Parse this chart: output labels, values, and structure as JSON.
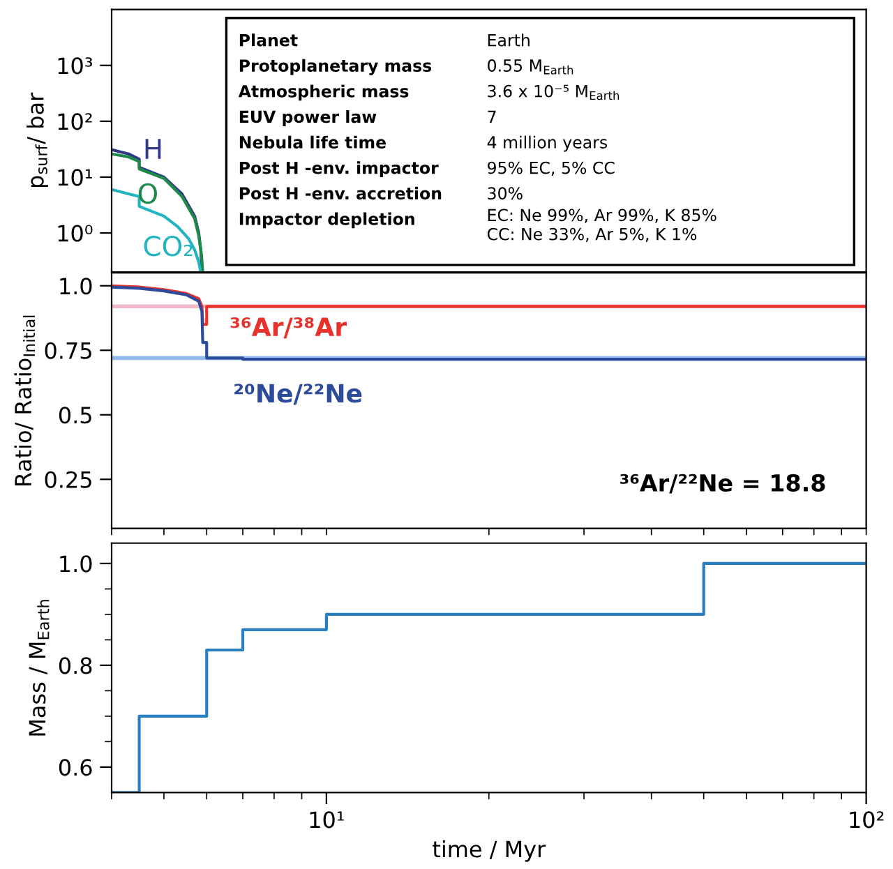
{
  "chart_data": [
    {
      "type": "line",
      "ylabel": "p$_{surf}$/ bar",
      "log": "xy",
      "xlim": [
        4,
        100
      ],
      "ylim": [
        0.2,
        10000
      ],
      "xticks": [
        {
          "value": 4,
          "label": null
        },
        {
          "value": 5,
          "label": null
        },
        {
          "value": 6,
          "label": null
        },
        {
          "value": 7,
          "label": null
        },
        {
          "value": 8,
          "label": null
        },
        {
          "value": 9,
          "label": null
        },
        {
          "value": 10,
          "label": null
        },
        {
          "value": 20,
          "label": null
        },
        {
          "value": 30,
          "label": null
        },
        {
          "value": 40,
          "label": null
        },
        {
          "value": 50,
          "label": null
        },
        {
          "value": 60,
          "label": null
        },
        {
          "value": 70,
          "label": null
        },
        {
          "value": 80,
          "label": null
        },
        {
          "value": 90,
          "label": null
        },
        {
          "value": 100,
          "label": null
        }
      ],
      "yticks": [
        {
          "value": 1,
          "label": "10⁰"
        },
        {
          "value": 10,
          "label": "10¹"
        },
        {
          "value": 100,
          "label": "10²"
        },
        {
          "value": 1000,
          "label": "10³"
        }
      ],
      "tick_labels": "y",
      "grid": false,
      "legend": false,
      "series": [
        {
          "name": "H",
          "color": "#2e3a87",
          "x": [
            4,
            4.3,
            4.5,
            4.5,
            5,
            5.4,
            5.7,
            5.8,
            5.85,
            5.88
          ],
          "values": [
            31,
            26,
            21,
            15,
            10,
            5,
            2,
            1,
            0.5,
            0.2
          ]
        },
        {
          "name": "O",
          "color": "#1e8a4a",
          "x": [
            4,
            4.3,
            4.5,
            4.5,
            5,
            5.4,
            5.7,
            5.8,
            5.87,
            5.9
          ],
          "values": [
            26,
            23,
            19,
            14,
            9.5,
            4.5,
            1.8,
            0.9,
            0.4,
            0.2
          ]
        },
        {
          "name": "CO₂",
          "color": "#22b5c0",
          "x": [
            4,
            4.3,
            4.5,
            4.5,
            5,
            5.3,
            5.55,
            5.7,
            5.8,
            5.85
          ],
          "values": [
            6,
            5,
            4.5,
            3,
            2,
            1.3,
            0.8,
            0.5,
            0.3,
            0.2
          ]
        }
      ],
      "annotations": [
        "Planet",
        "Earth",
        "Protoplanetary mass",
        "0.55 M$_{Earth}$",
        "Atmospheric mass",
        "3.6 x 10⁻⁵ M$_{Earth}$",
        "EUV power law",
        "7",
        "Nebula life time",
        "4 million years",
        "Post H -env. impactor",
        "95% EC, 5% CC",
        "Post H -env. accretion",
        "30%",
        "Impactor depletion",
        "EC: Ne 99%, Ar 99%, K 85%\nCC: Ne 33%, Ar 5%, K 1%"
      ]
    },
    {
      "type": "line",
      "ylabel": "Ratio/ Ratio$_{Initial}$",
      "log": "x",
      "xlim": [
        4,
        100
      ],
      "ylim": [
        0.06,
        1.05
      ],
      "xticks": [
        {
          "value": 4,
          "label": null
        },
        {
          "value": 5,
          "label": null
        },
        {
          "value": 6,
          "label": null
        },
        {
          "value": 7,
          "label": null
        },
        {
          "value": 8,
          "label": null
        },
        {
          "value": 9,
          "label": null
        },
        {
          "value": 10,
          "label": null
        },
        {
          "value": 20,
          "label": null
        },
        {
          "value": 30,
          "label": null
        },
        {
          "value": 40,
          "label": null
        },
        {
          "value": 50,
          "label": null
        },
        {
          "value": 60,
          "label": null
        },
        {
          "value": 70,
          "label": null
        },
        {
          "value": 80,
          "label": null
        },
        {
          "value": 90,
          "label": null
        },
        {
          "value": 100,
          "label": null
        }
      ],
      "yticks": [
        0.25,
        0.5,
        0.75,
        {
          "value": 1,
          "label": "1.0"
        }
      ],
      "tick_labels": "y",
      "grid": false,
      "legend": false,
      "ref_lines": [
        {
          "axis": "y",
          "value": 0.92,
          "label": null,
          "color": "#f2b8c6"
        },
        {
          "axis": "y",
          "value": 0.72,
          "label": null,
          "color": "#8fbbe8"
        }
      ],
      "series": [
        {
          "name": "³⁶Ar/³⁸Ar",
          "color": "#e8312a",
          "x": [
            4,
            4.5,
            5,
            5.5,
            5.8,
            5.88,
            5.9,
            6,
            6,
            100
          ],
          "values": [
            1.0,
            0.995,
            0.985,
            0.97,
            0.95,
            0.92,
            0.85,
            0.85,
            0.92,
            0.92
          ]
        },
        {
          "name": "²⁰Ne/²²Ne",
          "color": "#2c4b9a",
          "x": [
            4,
            4.5,
            5,
            5.5,
            5.8,
            5.88,
            5.9,
            6,
            6,
            7,
            7,
            100
          ],
          "values": [
            0.995,
            0.99,
            0.98,
            0.965,
            0.94,
            0.9,
            0.78,
            0.78,
            0.72,
            0.72,
            0.715,
            0.715
          ]
        }
      ],
      "annotations": [
        "³⁶Ar/²²Ne = 18.8"
      ]
    },
    {
      "type": "step",
      "ylabel": "Mass / M$_{Earth}$",
      "xlabel": "time / Myr",
      "log": "x",
      "xlim": [
        4,
        100
      ],
      "ylim": [
        0.55,
        1.04
      ],
      "xticks": [
        {
          "value": 4,
          "label": null
        },
        {
          "value": 5,
          "label": null
        },
        {
          "value": 6,
          "label": null
        },
        {
          "value": 7,
          "label": null
        },
        {
          "value": 8,
          "label": null
        },
        {
          "value": 9,
          "label": null
        },
        {
          "value": 10,
          "label": "10¹"
        },
        {
          "value": 20,
          "label": null
        },
        {
          "value": 30,
          "label": null
        },
        {
          "value": 40,
          "label": null
        },
        {
          "value": 50,
          "label": null
        },
        {
          "value": 60,
          "label": null
        },
        {
          "value": 70,
          "label": null
        },
        {
          "value": 80,
          "label": null
        },
        {
          "value": 90,
          "label": null
        },
        {
          "value": 100,
          "label": "10²"
        }
      ],
      "yticks": [
        {
          "value": 0.6,
          "label": "0.6"
        },
        {
          "value": 0.65,
          "label": null
        },
        {
          "value": 0.7,
          "label": null
        },
        {
          "value": 0.75,
          "label": null
        },
        {
          "value": 0.8,
          "label": "0.8"
        },
        {
          "value": 0.85,
          "label": null
        },
        {
          "value": 0.9,
          "label": null
        },
        {
          "value": 0.95,
          "label": null
        },
        {
          "value": 1.0,
          "label": "1.0"
        }
      ],
      "grid": false,
      "legend": false,
      "series": [
        {
          "color": "#2a7fc0",
          "x": [
            4,
            4.5,
            6,
            7,
            10,
            50,
            100
          ],
          "values": [
            0.55,
            0.7,
            0.83,
            0.87,
            0.9,
            1.0,
            1.0
          ]
        }
      ]
    }
  ]
}
